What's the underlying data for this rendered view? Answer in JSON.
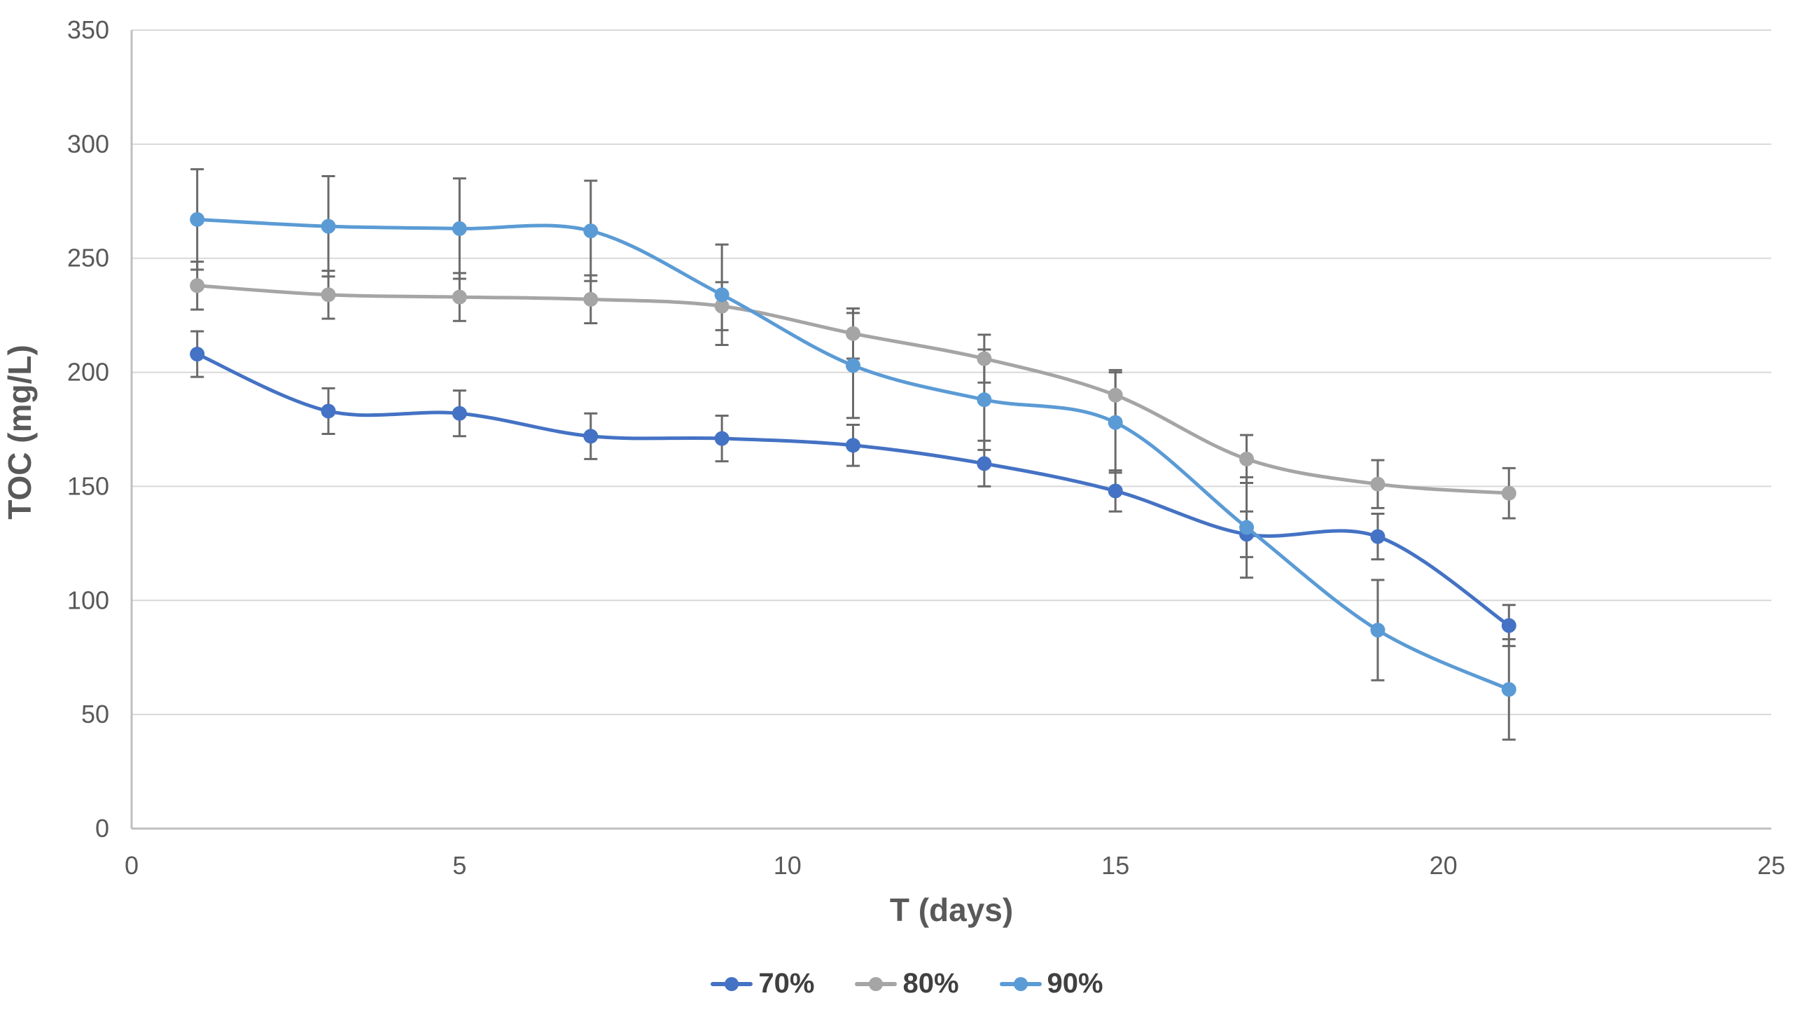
{
  "chart_data": {
    "type": "line",
    "title": "",
    "xlabel": "T (days)",
    "ylabel": "TOC (mg/L)",
    "x": [
      1,
      3,
      5,
      7,
      9,
      11,
      13,
      15,
      17,
      19,
      21
    ],
    "series": [
      {
        "name": "70%",
        "color": "#4472C4",
        "values": [
          208,
          183,
          182,
          172,
          171,
          168,
          160,
          148,
          129,
          128,
          89
        ],
        "errors": [
          10,
          10,
          10,
          10,
          10,
          9,
          10,
          9,
          10,
          10,
          9
        ]
      },
      {
        "name": "80%",
        "color": "#A5A5A5",
        "values": [
          238,
          234,
          233,
          232,
          229,
          217,
          206,
          190,
          162,
          151,
          147
        ],
        "errors": [
          10.5,
          10.5,
          10.5,
          10.5,
          10.5,
          11,
          10.5,
          11,
          10.5,
          10.5,
          11
        ]
      },
      {
        "name": "90%",
        "color": "#5B9BD5",
        "values": [
          267,
          264,
          263,
          262,
          234,
          203,
          188,
          178,
          132,
          87,
          61
        ],
        "errors": [
          22,
          22,
          22,
          22,
          22,
          23,
          22,
          22,
          22,
          22,
          22
        ]
      }
    ],
    "xlim": [
      0,
      25
    ],
    "ylim": [
      0,
      350
    ],
    "x_ticks": [
      0,
      5,
      10,
      15,
      20,
      25
    ],
    "y_ticks": [
      0,
      50,
      100,
      150,
      200,
      250,
      300,
      350
    ],
    "grid": "horizontal",
    "line_style": "smooth",
    "error_bars": true,
    "legend_position": "bottom"
  },
  "legend": {
    "items": [
      {
        "label": "70%"
      },
      {
        "label": "80%"
      },
      {
        "label": "90%"
      }
    ]
  },
  "colors": {
    "series_70": "#4472C4",
    "series_80": "#A5A5A5",
    "series_90": "#5B9BD5",
    "error_bar": "#6A6A6A",
    "gridline": "#D9D9D9",
    "axis_line": "#BFBFBF",
    "tick_text": "#595959",
    "title_text": "#595959"
  }
}
